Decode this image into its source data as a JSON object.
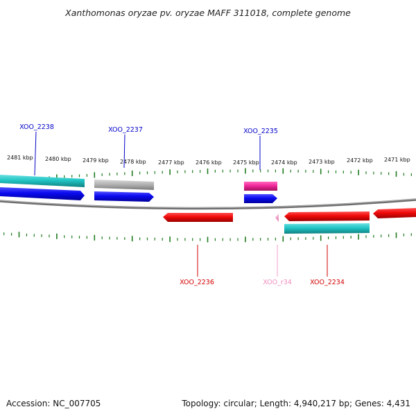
{
  "title": "Xanthomonas oryzae pv. oryzae MAFF 311018, complete genome",
  "footer": {
    "accession": "Accession: NC_007705",
    "summary": "Topology: circular; Length: 4,940,217 bp; Genes: 4,431"
  },
  "colors": {
    "backbone": "#808080",
    "tick": "#1e7a1e",
    "cds_forward": "#0a0af0",
    "cds_reverse": "#f00a0a",
    "gene_cyan": "#22c5c5",
    "pseudo_gray": "#b4b4b4",
    "gene_magenta": "#f0289a",
    "rna": "#f59ac5"
  },
  "scale_labels": [
    "2481 kbp",
    "2480 kbp",
    "2479 kbp",
    "2478 kbp",
    "2477 kbp",
    "2476 kbp",
    "2475 kbp",
    "2474 kbp",
    "2473 kbp",
    "2472 kbp",
    "2471 kbp"
  ],
  "gene_labels": [
    {
      "text": "XOO_2238",
      "color": "#0000c8"
    },
    {
      "text": "XOO_2237",
      "color": "#0000c8"
    },
    {
      "text": "XOO_2235",
      "color": "#0000c8"
    },
    {
      "text": "XOO_2236",
      "color": "#d20000"
    },
    {
      "text": "XOO_r34",
      "color": "#f08cbe"
    },
    {
      "text": "XOO_2234",
      "color": "#d20000"
    }
  ]
}
